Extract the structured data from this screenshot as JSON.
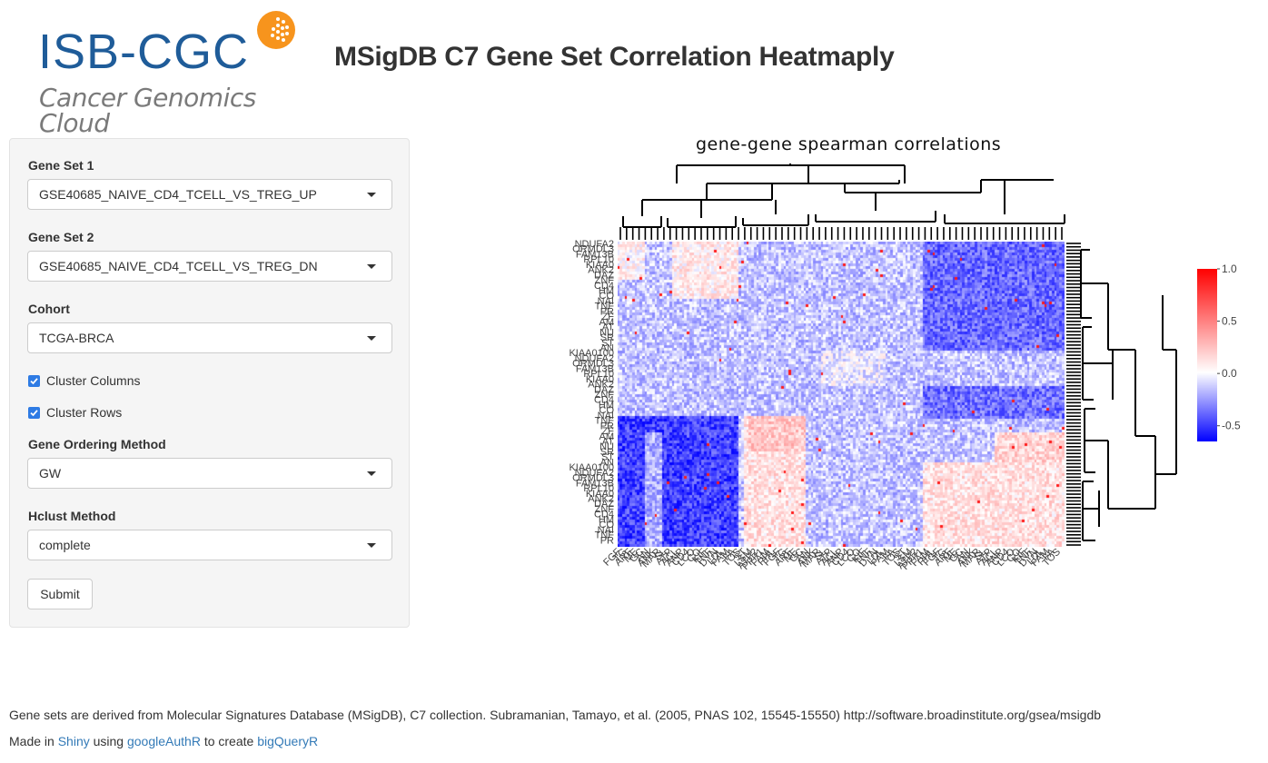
{
  "header": {
    "logo_text": "ISB-CGC",
    "logo_subtitle": "Cancer Genomics Cloud",
    "title": "MSigDB C7 Gene Set Correlation Heatmaply"
  },
  "sidebar": {
    "gene_set_1": {
      "label": "Gene Set 1",
      "value": "GSE40685_NAIVE_CD4_TCELL_VS_TREG_UP"
    },
    "gene_set_2": {
      "label": "Gene Set 2",
      "value": "GSE40685_NAIVE_CD4_TCELL_VS_TREG_DN"
    },
    "cohort": {
      "label": "Cohort",
      "value": "TCGA-BRCA"
    },
    "cluster_columns": {
      "label": "Cluster Columns",
      "checked": true
    },
    "cluster_rows": {
      "label": "Cluster Rows",
      "checked": true
    },
    "gene_ordering": {
      "label": "Gene Ordering Method",
      "value": "GW"
    },
    "hclust": {
      "label": "Hclust Method",
      "value": "complete"
    },
    "submit_label": "Submit"
  },
  "chart_data": {
    "type": "heatmap",
    "title": "gene-gene spearman correlations",
    "colorbar": {
      "ticks": [
        "1.0",
        "0.5",
        "0.0",
        "-0.5"
      ],
      "min": -0.65,
      "max": 1.0,
      "colors": [
        "#0000ff",
        "#ffffff",
        "#ff0000"
      ]
    },
    "row_labels": [
      "NDUFA2",
      "ORMDL3",
      "FAM13B",
      "RPL10",
      "KIAA0",
      "ANK2",
      "DAZ",
      "ZNF",
      "CD4",
      "HM",
      "CO",
      "NAI",
      "TNF",
      "PR",
      "ZF",
      "AM",
      "AT",
      "NU",
      "SR",
      "ST",
      "AN",
      "KIAA0100"
    ],
    "column_labels": [
      "FGF",
      "TG",
      "ARF",
      "ME",
      "GC",
      "AN",
      "ANK",
      "MAR",
      "SL",
      "ATP",
      "ACL",
      "ANP",
      "CD4",
      "LCO",
      "CO",
      "KIF",
      "TNF",
      "DYN",
      "LDL",
      "FAM",
      "FA",
      "TOS",
      "ST",
      "LSM",
      "ATP2",
      "PPP1",
      "FAM",
      "PHL"
    ],
    "matrix_size": [
      112,
      180
    ],
    "diagonal_value": 1.0
  },
  "footer": {
    "note": "Gene sets are derived from Molecular Signatures Database (MSigDB), C7 collection. Subramanian, Tamayo, et al. (2005, PNAS 102, 15545-15550) http://software.broadinstitute.org/gsea/msigdb",
    "made_prefix": "Made in",
    "shiny_link": "Shiny",
    "using_text": "using",
    "googleauthr_link": "googleAuthR",
    "create_text": "to create",
    "bigqueryr_link": "bigQueryR"
  }
}
